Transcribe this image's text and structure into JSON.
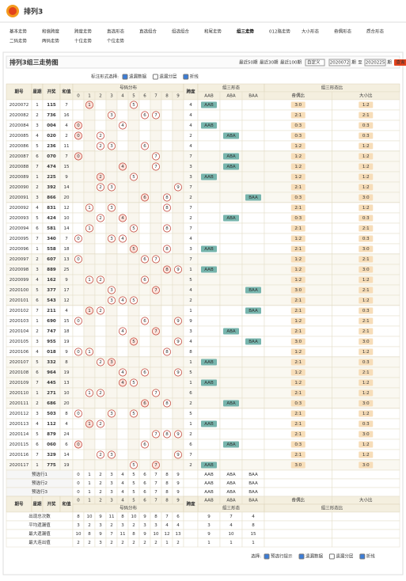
{
  "logo": "排列3",
  "nav": [
    "基本走势",
    "和值跨度",
    "跨度走势",
    "直选形态",
    "直选组合",
    "组选组合",
    "和尾走势",
    "组三走势",
    "012路走势",
    "大小形态",
    "奇偶形态",
    "质合形态",
    "二码走势",
    "两码走势",
    "十位走势",
    "个位走势"
  ],
  "title": "排列3组三走势图",
  "controls": {
    "recent": [
      "最近50期",
      "最近30期",
      "最近100期"
    ],
    "custom": "自定义",
    "from": "2020072",
    "unit": "期",
    "to_label": "至",
    "to": "2020225",
    "query": "查询"
  },
  "options": {
    "label": "标注形式选择:",
    "items": [
      "遗漏数据",
      "遗漏分层",
      "折线"
    ]
  },
  "table": {
    "headers": {
      "issue": "期号",
      "week": "星期",
      "num": "开奖",
      "sum": "和值",
      "dist": "号码分布",
      "span": "跨度",
      "form": "组三形态",
      "ratio": "组三形态比"
    },
    "digits": [
      "0",
      "1",
      "2",
      "3",
      "4",
      "5",
      "6",
      "7",
      "8",
      "9"
    ],
    "forms": [
      "AAB",
      "ABA",
      "BAA"
    ],
    "ratios": [
      "奇偶比",
      "大小比"
    ],
    "rows": [
      [
        "2020072",
        1,
        "115",
        [
          1,
          1,
          5
        ],
        7,
        4,
        "AAB",
        "3:0",
        "1:2"
      ],
      [
        "2020082",
        2,
        "736",
        [
          7,
          3,
          6
        ],
        16,
        4,
        null,
        "2:1",
        "2:1"
      ],
      [
        "2020084",
        3,
        "004",
        [
          0,
          0,
          4
        ],
        4,
        4,
        "AAB",
        "0:3",
        "0:3"
      ],
      [
        "2020085",
        4,
        "020",
        [
          0,
          2,
          0
        ],
        2,
        2,
        "ABA",
        "0:3",
        "0:3"
      ],
      [
        "2020086",
        5,
        "236",
        [
          2,
          3,
          6
        ],
        11,
        4,
        null,
        "1:2",
        "1:2"
      ],
      [
        "2020087",
        6,
        "070",
        [
          0,
          7,
          0
        ],
        7,
        7,
        "ABA",
        "1:2",
        "1:2"
      ],
      [
        "2020088",
        7,
        "474",
        [
          4,
          7,
          4
        ],
        15,
        3,
        "ABA",
        "1:2",
        "1:2"
      ],
      [
        "2020089",
        1,
        "225",
        [
          2,
          2,
          5
        ],
        9,
        3,
        "AAB",
        "1:2",
        "1:2"
      ],
      [
        "2020090",
        2,
        "392",
        [
          3,
          9,
          2
        ],
        14,
        7,
        null,
        "2:1",
        "1:2"
      ],
      [
        "2020091",
        3,
        "866",
        [
          8,
          6,
          6
        ],
        20,
        2,
        "BAA",
        "0:3",
        "3:0"
      ],
      [
        "2020092",
        4,
        "831",
        [
          8,
          3,
          1
        ],
        12,
        7,
        null,
        "2:1",
        "1:2"
      ],
      [
        "2020093",
        5,
        "424",
        [
          4,
          2,
          4
        ],
        10,
        2,
        "ABA",
        "0:3",
        "0:3"
      ],
      [
        "2020094",
        6,
        "581",
        [
          5,
          8,
          1
        ],
        14,
        7,
        null,
        "2:1",
        "2:1"
      ],
      [
        "2020095",
        7,
        "340",
        [
          3,
          4,
          0
        ],
        7,
        4,
        null,
        "1:2",
        "0:3"
      ],
      [
        "2020096",
        1,
        "558",
        [
          5,
          5,
          8
        ],
        18,
        3,
        "AAB",
        "2:1",
        "3:0"
      ],
      [
        "2020097",
        2,
        "607",
        [
          6,
          0,
          7
        ],
        13,
        7,
        null,
        "1:2",
        "2:1"
      ],
      [
        "2020098",
        3,
        "889",
        [
          8,
          8,
          9
        ],
        25,
        1,
        "AAB",
        "1:2",
        "3:0"
      ],
      [
        "2020099",
        4,
        "162",
        [
          1,
          6,
          2
        ],
        9,
        5,
        null,
        "1:2",
        "1:2"
      ],
      [
        "2020100",
        5,
        "377",
        [
          3,
          7,
          7
        ],
        17,
        4,
        "BAA",
        "3:0",
        "2:1"
      ],
      [
        "2020101",
        6,
        "543",
        [
          5,
          4,
          3
        ],
        12,
        2,
        null,
        "2:1",
        "1:2"
      ],
      [
        "2020102",
        7,
        "211",
        [
          2,
          1,
          1
        ],
        4,
        1,
        "BAA",
        "2:1",
        "0:3"
      ],
      [
        "2020103",
        1,
        "690",
        [
          6,
          9,
          0
        ],
        15,
        9,
        null,
        "1:2",
        "2:1"
      ],
      [
        "2020104",
        2,
        "747",
        [
          7,
          4,
          7
        ],
        18,
        3,
        "ABA",
        "2:1",
        "2:1"
      ],
      [
        "2020105",
        3,
        "955",
        [
          9,
          5,
          5
        ],
        19,
        4,
        "BAA",
        "3:0",
        "3:0"
      ],
      [
        "2020106",
        4,
        "018",
        [
          0,
          1,
          8
        ],
        9,
        8,
        null,
        "1:2",
        "1:2"
      ],
      [
        "2020107",
        5,
        "332",
        [
          3,
          3,
          2
        ],
        8,
        1,
        "AAB",
        "2:1",
        "0:3"
      ],
      [
        "2020108",
        6,
        "964",
        [
          9,
          6,
          4
        ],
        19,
        5,
        null,
        "1:2",
        "2:1"
      ],
      [
        "2020109",
        7,
        "445",
        [
          4,
          4,
          5
        ],
        13,
        1,
        "AAB",
        "1:2",
        "1:2"
      ],
      [
        "2020110",
        1,
        "271",
        [
          2,
          7,
          1
        ],
        10,
        6,
        null,
        "2:1",
        "1:2"
      ],
      [
        "2020111",
        2,
        "686",
        [
          6,
          8,
          6
        ],
        20,
        2,
        "ABA",
        "0:3",
        "3:0"
      ],
      [
        "2020112",
        3,
        "503",
        [
          5,
          0,
          3
        ],
        8,
        5,
        null,
        "2:1",
        "1:2"
      ],
      [
        "2020113",
        4,
        "112",
        [
          1,
          1,
          2
        ],
        4,
        1,
        "AAB",
        "2:1",
        "0:3"
      ],
      [
        "2020114",
        5,
        "879",
        [
          8,
          7,
          9
        ],
        24,
        2,
        null,
        "2:1",
        "3:0"
      ],
      [
        "2020115",
        6,
        "060",
        [
          0,
          6,
          0
        ],
        6,
        6,
        "ABA",
        "0:3",
        "1:2"
      ],
      [
        "2020116",
        7,
        "329",
        [
          3,
          2,
          9
        ],
        14,
        7,
        null,
        "2:1",
        "1:2"
      ],
      [
        "2020117",
        1,
        "775",
        [
          7,
          7,
          5
        ],
        19,
        2,
        "AAB",
        "3:0",
        "3:0"
      ]
    ],
    "preselect": [
      "预选行1",
      "预选行2",
      "预选行3"
    ],
    "stats": [
      {
        "label": "出现总次数",
        "digits": [
          8,
          10,
          9,
          11,
          8,
          10,
          9,
          8,
          7,
          6
        ],
        "forms": [
          9,
          7,
          4
        ]
      },
      {
        "label": "平均遗漏值",
        "digits": [
          3,
          2,
          3,
          2,
          3,
          2,
          3,
          3,
          4,
          4
        ],
        "forms": [
          3,
          4,
          8
        ]
      },
      {
        "label": "最大遗漏值",
        "digits": [
          10,
          8,
          9,
          7,
          11,
          8,
          9,
          10,
          12,
          13
        ],
        "forms": [
          9,
          10,
          15
        ]
      },
      {
        "label": "最大连出值",
        "digits": [
          2,
          2,
          3,
          2,
          2,
          2,
          2,
          2,
          1,
          2
        ],
        "forms": [
          1,
          1,
          1
        ]
      }
    ]
  },
  "footer": {
    "label": "选择:",
    "items": [
      "预选行提示",
      "遗漏数据",
      "遗漏分层",
      "折线"
    ]
  }
}
